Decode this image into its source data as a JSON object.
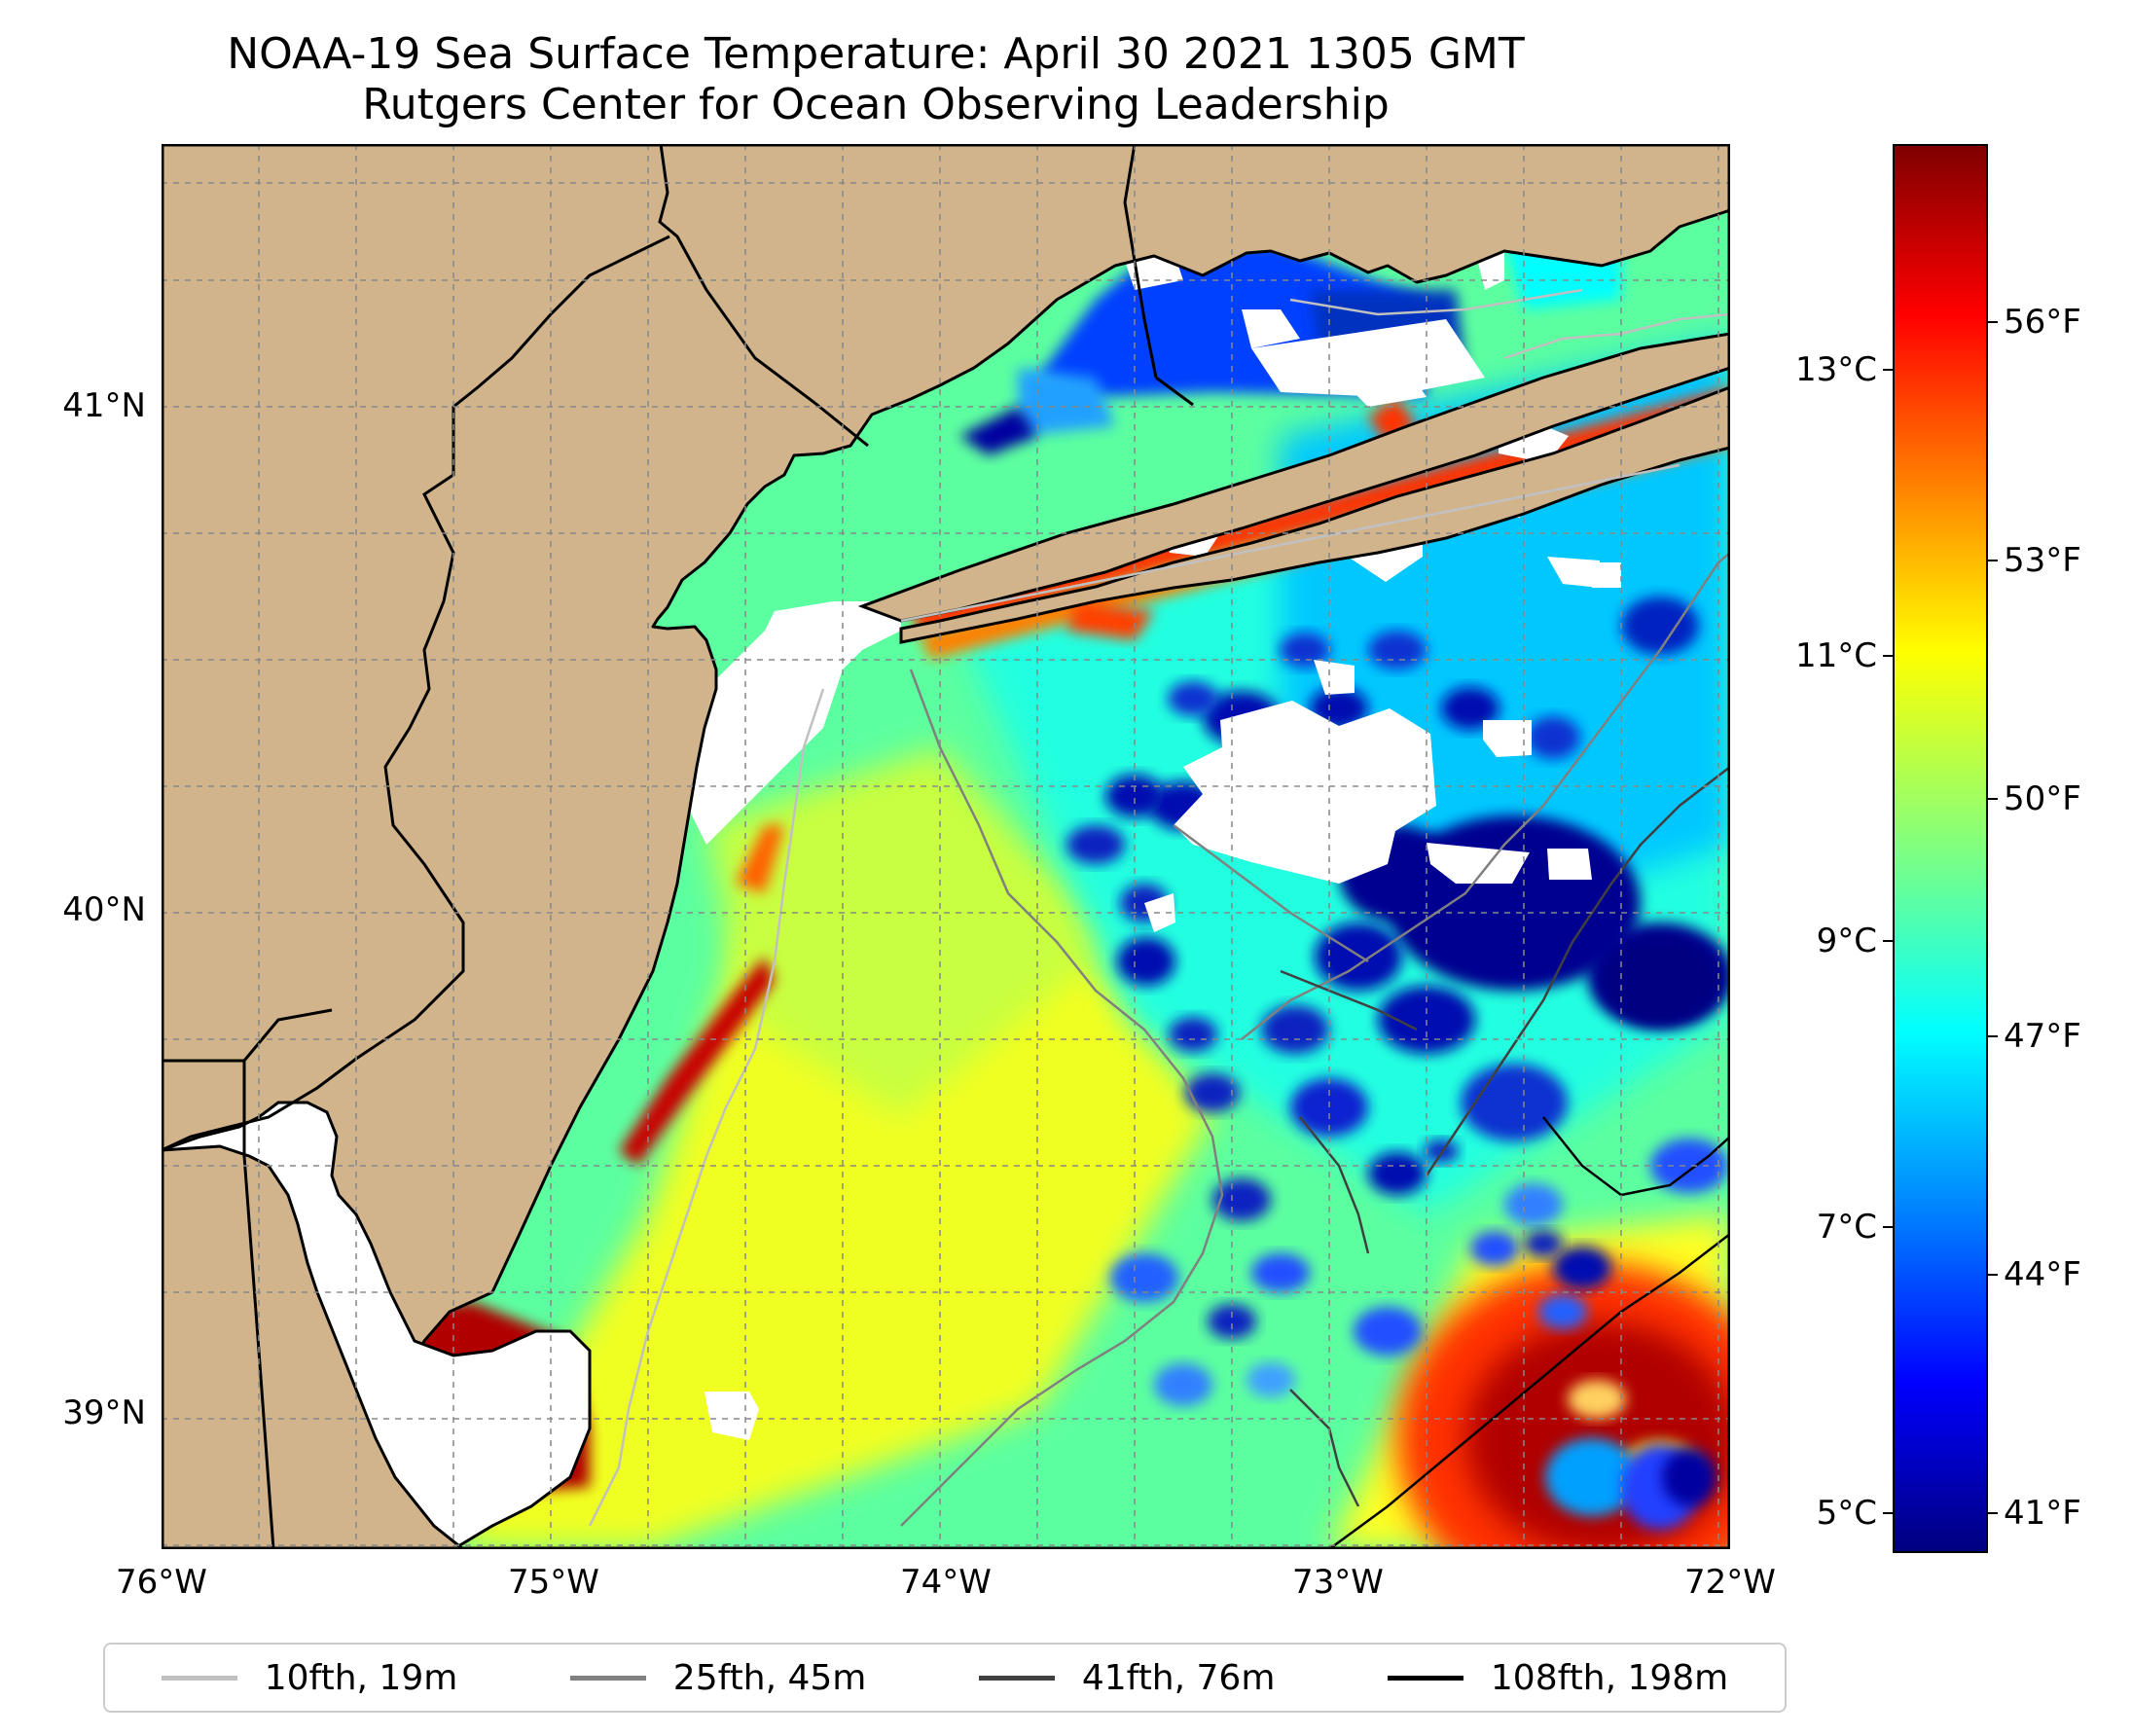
{
  "title": "NOAA-19 Sea Surface Temperature: April 30 2021 1305 GMT",
  "subtitle": "Rutgers Center for Ocean Observing Leadership",
  "map": {
    "x_ticks": [
      {
        "value": -76,
        "label": "76°W"
      },
      {
        "value": -75,
        "label": "75°W"
      },
      {
        "value": -74,
        "label": "74°W"
      },
      {
        "value": -73,
        "label": "73°W"
      },
      {
        "value": -72,
        "label": "72°W"
      }
    ],
    "y_ticks": [
      {
        "value": 41,
        "label": "41°N"
      },
      {
        "value": 40,
        "label": "40°N"
      },
      {
        "value": 39,
        "label": "39°N"
      }
    ],
    "lon_range": [
      -76,
      -72
    ],
    "lat_range": [
      38.73,
      41.52
    ],
    "land_color": "#d2b48c",
    "grid": true
  },
  "colorbar": {
    "celsius_ticks": [
      {
        "value": 13,
        "label": "13°C"
      },
      {
        "value": 11,
        "label": "11°C"
      },
      {
        "value": 9,
        "label": "9°C"
      },
      {
        "value": 7,
        "label": "7°C"
      },
      {
        "value": 5,
        "label": "5°C"
      }
    ],
    "fahrenheit_ticks": [
      {
        "value": 56,
        "label": "56°F"
      },
      {
        "value": 53,
        "label": "53°F"
      },
      {
        "value": 50,
        "label": "50°F"
      },
      {
        "value": 47,
        "label": "47°F"
      },
      {
        "value": 44,
        "label": "44°F"
      },
      {
        "value": 41,
        "label": "41°F"
      }
    ],
    "range_c": [
      4.72,
      14.58
    ],
    "colormap": "jet"
  },
  "legend": [
    {
      "label": "10fth, 19m",
      "color": "#c0c0c0"
    },
    {
      "label": "25fth, 45m",
      "color": "#808080"
    },
    {
      "label": "41fth, 76m",
      "color": "#404040"
    },
    {
      "label": "108fth, 198m",
      "color": "#000000"
    }
  ]
}
